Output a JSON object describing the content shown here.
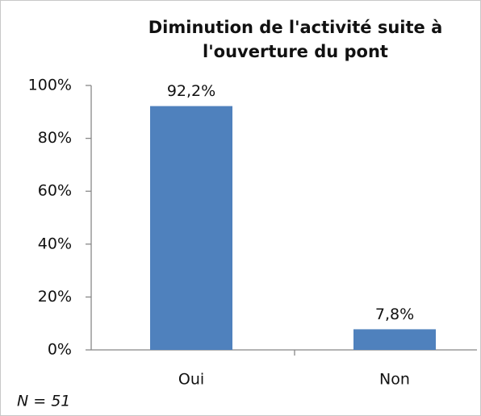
{
  "chart_data": {
    "type": "bar",
    "title": "Diminution de l'activité suite à l'ouverture du pont",
    "categories": [
      "Oui",
      "Non"
    ],
    "values": [
      92.2,
      7.8
    ],
    "value_labels": [
      "92,2%",
      "7,8%"
    ],
    "color": "#4f81bd",
    "ylim": [
      0,
      100
    ],
    "yticks": [
      {
        "value": 0,
        "label": "0%"
      },
      {
        "value": 20,
        "label": "20%"
      },
      {
        "value": 40,
        "label": "40%"
      },
      {
        "value": 60,
        "label": "60%"
      },
      {
        "value": 80,
        "label": "80%"
      },
      {
        "value": 100,
        "label": "100%"
      }
    ],
    "annotation": "N = 51"
  }
}
